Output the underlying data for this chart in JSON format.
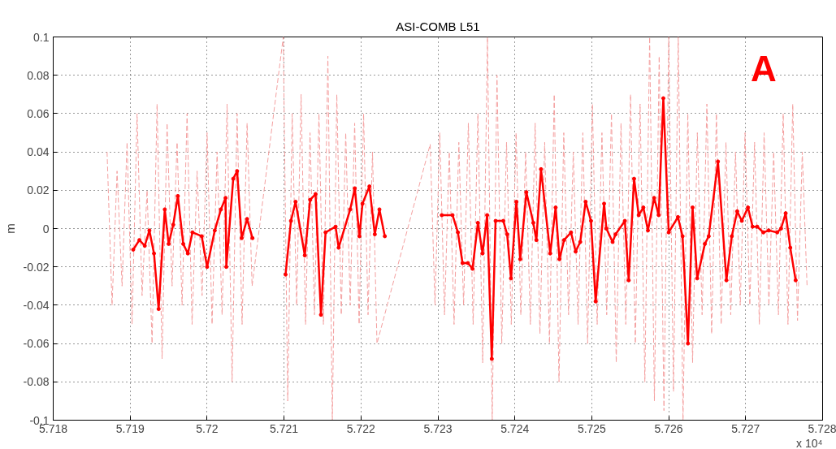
{
  "chart_data": {
    "type": "line",
    "title": "ASI-COMB L51",
    "ylabel": "m",
    "xlim": [
      5.718,
      5.728
    ],
    "xticks": [
      5.718,
      5.719,
      5.72,
      5.721,
      5.722,
      5.723,
      5.724,
      5.725,
      5.726,
      5.727,
      5.728
    ],
    "ylim": [
      -0.1,
      0.1
    ],
    "yticks": [
      -0.1,
      -0.08,
      -0.06,
      -0.04,
      -0.02,
      0,
      0.02,
      0.04,
      0.06,
      0.08,
      0.1
    ],
    "grid": true,
    "annotations": [
      "A",
      "x 10⁴"
    ],
    "series": [
      {
        "color": "#f4a0a0",
        "line_style": "dashed",
        "marker": "none",
        "x": [
          5.7187,
          5.718765,
          5.71883,
          5.718895,
          5.71896,
          5.719025,
          5.71909,
          5.719155,
          5.71922,
          5.719285,
          5.71935,
          5.719415,
          5.71948,
          5.719545,
          5.71961,
          5.719675,
          5.71974,
          5.719805,
          5.71987,
          5.719935,
          5.72,
          5.720065,
          5.72013,
          5.720195,
          5.72026,
          5.720325,
          5.72039,
          5.720455,
          5.72052,
          5.720585,
          5.72099,
          5.721048,
          5.721106,
          5.721164,
          5.721222,
          5.72128,
          5.721338,
          5.721396,
          5.721454,
          5.721512,
          5.72157,
          5.721628,
          5.721686,
          5.721744,
          5.721802,
          5.72186,
          5.721918,
          5.721976,
          5.722034,
          5.722092,
          5.72215,
          5.722208,
          5.7229,
          5.722962,
          5.723024,
          5.723086,
          5.723148,
          5.72321,
          5.723272,
          5.723334,
          5.723396,
          5.723458,
          5.72352,
          5.723582,
          5.723644,
          5.723706,
          5.723768,
          5.72383,
          5.723892,
          5.723954,
          5.724016,
          5.724078,
          5.72414,
          5.724202,
          5.724264,
          5.724326,
          5.724388,
          5.72445,
          5.724512,
          5.724574,
          5.724636,
          5.724698,
          5.72476,
          5.724822,
          5.724884,
          5.724946,
          5.725008,
          5.72507,
          5.725132,
          5.725194,
          5.725256,
          5.725318,
          5.72538,
          5.725442,
          5.725504,
          5.725566,
          5.725628,
          5.72569,
          5.725752,
          5.725814,
          5.725876,
          5.725938,
          5.726,
          5.726062,
          5.726124,
          5.726186,
          5.726248,
          5.72631,
          5.726372,
          5.726434,
          5.726496,
          5.726558,
          5.72662,
          5.726682,
          5.726744,
          5.726806,
          5.726868,
          5.72693,
          5.726992,
          5.727054,
          5.727116,
          5.727178,
          5.72724,
          5.727302,
          5.727364,
          5.727426,
          5.727488,
          5.72755,
          5.727612,
          5.727674,
          5.727736,
          5.727798
        ],
        "values": [
          0.04,
          -0.04,
          0.03,
          -0.03,
          0.045,
          -0.05,
          0.06,
          -0.035,
          0.02,
          -0.06,
          0.065,
          -0.068,
          0.055,
          -0.03,
          0.045,
          -0.04,
          0.06,
          -0.05,
          0.03,
          -0.035,
          0.05,
          -0.05,
          0.04,
          -0.045,
          0.065,
          -0.08,
          0.06,
          -0.05,
          0.055,
          -0.03,
          0.1,
          -0.09,
          0.06,
          -0.04,
          0.07,
          -0.05,
          0.05,
          -0.045,
          0.06,
          -0.05,
          0.09,
          -0.1,
          0.07,
          -0.045,
          0.05,
          -0.04,
          0.055,
          -0.05,
          0.06,
          -0.045,
          0.04,
          -0.06,
          0.044,
          -0.04,
          0.05,
          -0.045,
          0.04,
          -0.05,
          0.045,
          -0.04,
          0.055,
          -0.05,
          0.06,
          -0.07,
          0.1,
          -0.1,
          0.08,
          -0.06,
          0.045,
          -0.05,
          0.05,
          -0.045,
          0.04,
          -0.05,
          0.055,
          -0.055,
          0.045,
          -0.06,
          0.07,
          -0.08,
          0.05,
          -0.045,
          0.04,
          -0.05,
          0.05,
          -0.06,
          0.065,
          -0.05,
          0.05,
          -0.045,
          0.06,
          -0.07,
          0.055,
          -0.05,
          0.07,
          -0.06,
          0.065,
          -0.08,
          0.1,
          -0.09,
          0.09,
          -0.095,
          0.1,
          -0.085,
          0.1,
          -0.1,
          0.06,
          -0.07,
          0.05,
          -0.045,
          0.065,
          -0.055,
          0.06,
          -0.05,
          0.045,
          -0.045,
          0.04,
          -0.04,
          0.05,
          -0.04,
          0.045,
          -0.05,
          0.05,
          -0.04,
          0.04,
          -0.045,
          0.06,
          -0.05,
          0.065,
          -0.048,
          0.04,
          -0.03
        ]
      },
      {
        "color": "#ff0000",
        "line_style": "solid",
        "marker": "circle",
        "x": [
          5.71904,
          5.71912,
          5.71919,
          5.71925,
          5.71931,
          5.71937,
          5.71945,
          5.7195,
          5.71956,
          5.71962,
          5.71969,
          5.71975,
          5.71981,
          5.71993,
          5.72,
          5.7201,
          5.72018,
          5.72024,
          5.72025,
          5.72034,
          5.72039,
          5.72045,
          5.72052,
          5.72059,
          5.7208,
          5.72102,
          5.72109,
          5.72115,
          5.72127,
          5.72134,
          5.72141,
          5.72148,
          5.72154,
          5.72167,
          5.72171,
          5.72186,
          5.72192,
          5.72198,
          5.72202,
          5.72211,
          5.72218,
          5.72224,
          5.72231,
          5.7226,
          5.72305,
          5.72319,
          5.72326,
          5.72332,
          5.72339,
          5.72345,
          5.72352,
          5.72358,
          5.72364,
          5.7237,
          5.72375,
          5.72385,
          5.7239,
          5.72395,
          5.72402,
          5.72407,
          5.72415,
          5.72424,
          5.72428,
          5.72434,
          5.72446,
          5.72453,
          5.72458,
          5.72464,
          5.72473,
          5.72479,
          5.72485,
          5.72492,
          5.72499,
          5.72505,
          5.72516,
          5.72519,
          5.72527,
          5.72531,
          5.72543,
          5.72548,
          5.72555,
          5.72561,
          5.72567,
          5.72573,
          5.72581,
          5.72587,
          5.72593,
          5.726,
          5.72612,
          5.72618,
          5.72625,
          5.72631,
          5.72637,
          5.72647,
          5.72652,
          5.72664,
          5.72675,
          5.72682,
          5.72689,
          5.72695,
          5.72703,
          5.72709,
          5.72715,
          5.72723,
          5.7273,
          5.72741,
          5.72746,
          5.72752,
          5.72758,
          5.72765
        ],
        "values": [
          -0.011,
          -0.006,
          -0.009,
          -0.001,
          -0.013,
          -0.042,
          0.01,
          -0.008,
          0.002,
          0.017,
          -0.008,
          -0.013,
          -0.002,
          -0.004,
          -0.02,
          -0.001,
          0.01,
          0.016,
          -0.02,
          0.026,
          0.03,
          -0.005,
          0.005,
          -0.005,
          null,
          -0.024,
          0.004,
          0.014,
          -0.014,
          0.015,
          0.018,
          -0.045,
          -0.002,
          0.001,
          -0.01,
          0.01,
          0.021,
          -0.004,
          0.013,
          0.022,
          -0.003,
          0.01,
          -0.004,
          null,
          0.007,
          0.007,
          -0.002,
          -0.018,
          -0.018,
          -0.021,
          0.003,
          -0.013,
          0.007,
          -0.068,
          0.004,
          0.004,
          -0.003,
          -0.026,
          0.014,
          -0.016,
          0.019,
          0.003,
          -0.006,
          0.031,
          -0.013,
          0.011,
          -0.016,
          -0.006,
          -0.002,
          -0.012,
          -0.007,
          0.014,
          0.004,
          -0.038,
          0.013,
          0,
          -0.007,
          -0.003,
          0.004,
          -0.027,
          0.026,
          0.007,
          0.011,
          -0.001,
          0.016,
          0.007,
          0.068,
          -0.002,
          0.006,
          -0.004,
          -0.06,
          0.011,
          -0.026,
          -0.008,
          -0.004,
          0.035,
          -0.027,
          -0.004,
          0.009,
          0.004,
          0.011,
          0.001,
          0.001,
          -0.002,
          -0.001,
          -0.002,
          0,
          0.008,
          -0.01,
          -0.027
        ]
      }
    ]
  }
}
